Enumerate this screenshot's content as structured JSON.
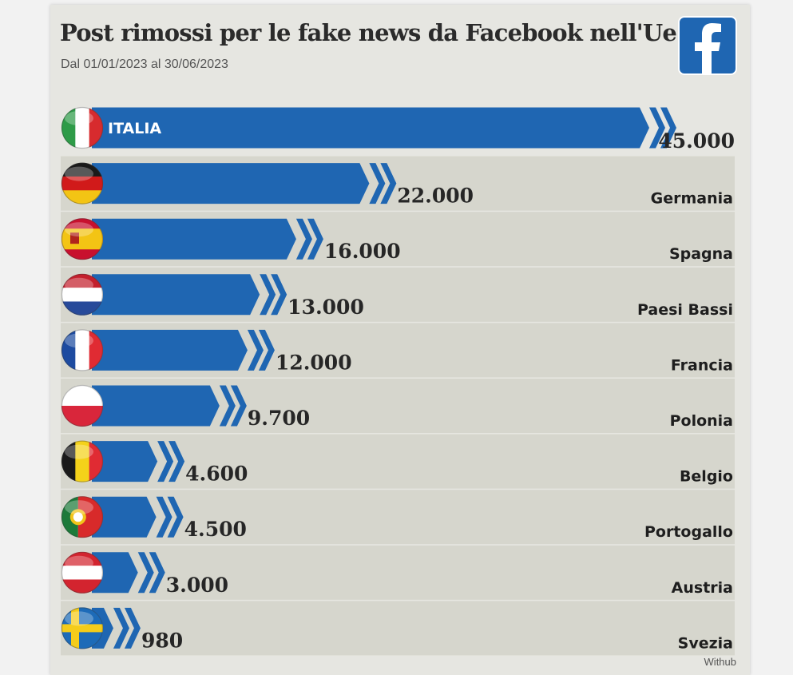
{
  "header": {
    "title": "Post rimossi per le fake news da Facebook nell'Ue",
    "subtitle": "Dal 01/01/2023 al 30/06/2023"
  },
  "logo": {
    "icon": "facebook-logo-icon",
    "letter": "f",
    "color": "#1f66b2"
  },
  "footer": {
    "source": "Withub"
  },
  "colors": {
    "bar": "#1f66b2",
    "band": "#d6d6cd",
    "background": "#e6e6e1"
  },
  "chart_data": {
    "type": "bar",
    "orientation": "horizontal",
    "title": "Post rimossi per le fake news da Facebook nell'Ue",
    "subtitle": "Dal 01/01/2023 al 30/06/2023",
    "categories": [
      "ITALIA",
      "Germania",
      "Spagna",
      "Paesi Bassi",
      "Francia",
      "Polonia",
      "Belgio",
      "Portogallo",
      "Austria",
      "Svezia"
    ],
    "values": [
      45000,
      22000,
      16000,
      13000,
      12000,
      9700,
      4600,
      4500,
      3000,
      980
    ],
    "value_labels": [
      "45.000",
      "22.000",
      "16.000",
      "13.000",
      "12.000",
      "9.700",
      "4.600",
      "4.500",
      "3.000",
      "980"
    ],
    "flags": [
      "it",
      "de",
      "es",
      "nl",
      "fr",
      "pl",
      "be",
      "pt",
      "at",
      "se"
    ],
    "xlim": [
      0,
      45000
    ],
    "grid": false,
    "legend": "none"
  }
}
